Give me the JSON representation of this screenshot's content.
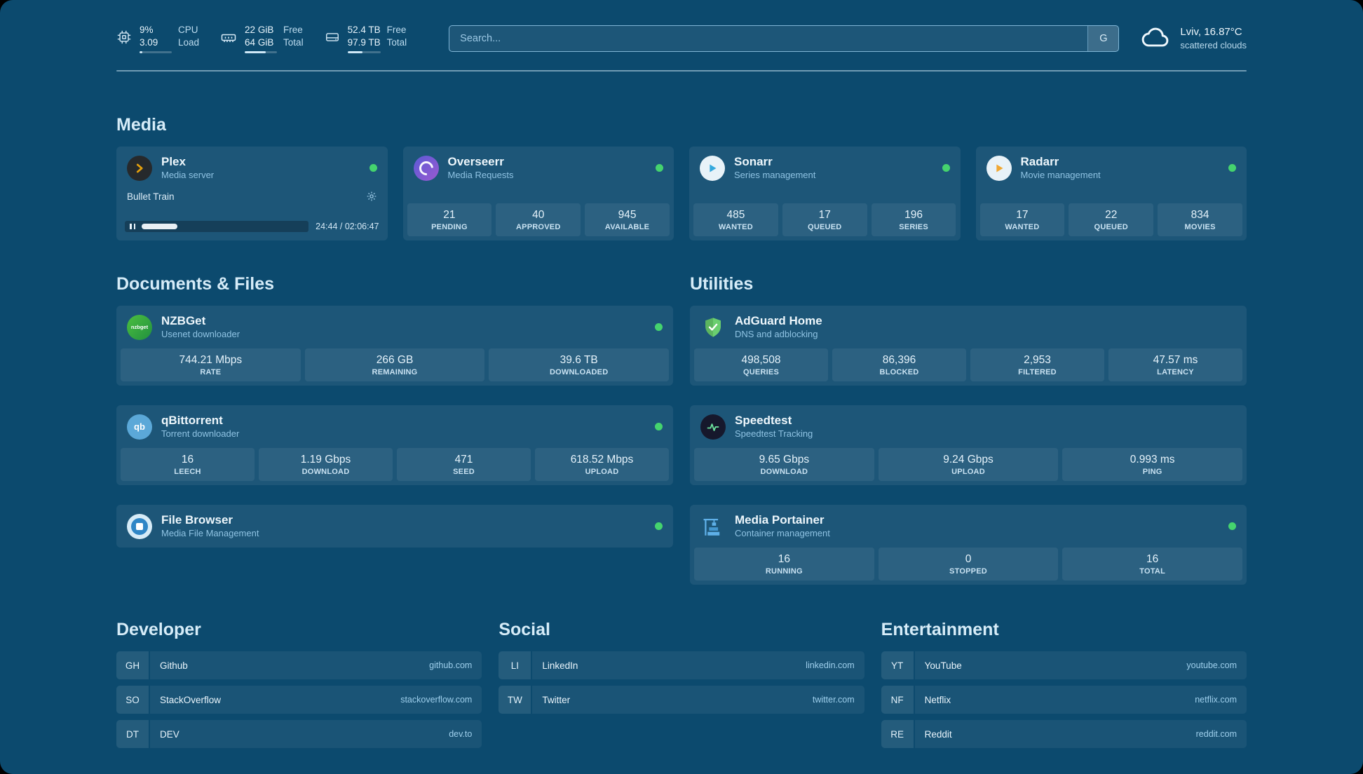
{
  "topbar": {
    "cpu": {
      "value_top": "9%",
      "value_bottom": "3.09",
      "label_top": "CPU",
      "label_bottom": "Load",
      "usage_pct": 9
    },
    "memory": {
      "value_top": "22 GiB",
      "value_bottom": "64 GiB",
      "label_top": "Free",
      "label_bottom": "Total",
      "usage_pct": 66
    },
    "disk": {
      "value_top": "52.4 TB",
      "value_bottom": "97.9 TB",
      "label_top": "Free",
      "label_bottom": "Total",
      "usage_pct": 46
    },
    "search": {
      "placeholder": "Search...",
      "provider_label": "G"
    },
    "weather": {
      "location": "Lviv, 16.87°C",
      "condition": "scattered clouds"
    }
  },
  "sections": {
    "media": "Media",
    "documents": "Documents & Files",
    "utilities": "Utilities",
    "developer": "Developer",
    "social": "Social",
    "entertainment": "Entertainment"
  },
  "services": {
    "plex": {
      "name": "Plex",
      "subtitle": "Media server",
      "now_playing": {
        "title": "Bullet Train",
        "progress_pct": 19.5,
        "time": "24:44 / 02:06:47"
      }
    },
    "overseerr": {
      "name": "Overseerr",
      "subtitle": "Media Requests",
      "stats": [
        {
          "value": "21",
          "label": "PENDING"
        },
        {
          "value": "40",
          "label": "APPROVED"
        },
        {
          "value": "945",
          "label": "AVAILABLE"
        }
      ]
    },
    "sonarr": {
      "name": "Sonarr",
      "subtitle": "Series management",
      "stats": [
        {
          "value": "485",
          "label": "WANTED"
        },
        {
          "value": "17",
          "label": "QUEUED"
        },
        {
          "value": "196",
          "label": "SERIES"
        }
      ]
    },
    "radarr": {
      "name": "Radarr",
      "subtitle": "Movie management",
      "stats": [
        {
          "value": "17",
          "label": "WANTED"
        },
        {
          "value": "22",
          "label": "QUEUED"
        },
        {
          "value": "834",
          "label": "MOVIES"
        }
      ]
    },
    "nzbget": {
      "name": "NZBGet",
      "subtitle": "Usenet downloader",
      "icon_text": "nzbget",
      "stats": [
        {
          "value": "744.21 Mbps",
          "label": "RATE"
        },
        {
          "value": "266 GB",
          "label": "REMAINING"
        },
        {
          "value": "39.6 TB",
          "label": "DOWNLOADED"
        }
      ]
    },
    "adguard": {
      "name": "AdGuard Home",
      "subtitle": "DNS and adblocking",
      "stats": [
        {
          "value": "498,508",
          "label": "QUERIES"
        },
        {
          "value": "86,396",
          "label": "BLOCKED"
        },
        {
          "value": "2,953",
          "label": "FILTERED"
        },
        {
          "value": "47.57 ms",
          "label": "LATENCY"
        }
      ]
    },
    "qbittorrent": {
      "name": "qBittorrent",
      "subtitle": "Torrent downloader",
      "icon_text": "qb",
      "stats": [
        {
          "value": "16",
          "label": "LEECH"
        },
        {
          "value": "1.19 Gbps",
          "label": "DOWNLOAD"
        },
        {
          "value": "471",
          "label": "SEED"
        },
        {
          "value": "618.52 Mbps",
          "label": "UPLOAD"
        }
      ]
    },
    "speedtest": {
      "name": "Speedtest",
      "subtitle": "Speedtest Tracking",
      "stats": [
        {
          "value": "9.65 Gbps",
          "label": "DOWNLOAD"
        },
        {
          "value": "9.24 Gbps",
          "label": "UPLOAD"
        },
        {
          "value": "0.993 ms",
          "label": "PING"
        }
      ]
    },
    "filebrowser": {
      "name": "File Browser",
      "subtitle": "Media File Management"
    },
    "portainer": {
      "name": "Media Portainer",
      "subtitle": "Container management",
      "stats": [
        {
          "value": "16",
          "label": "RUNNING"
        },
        {
          "value": "0",
          "label": "STOPPED"
        },
        {
          "value": "16",
          "label": "TOTAL"
        }
      ]
    }
  },
  "bookmarks": {
    "developer": [
      {
        "abbr": "GH",
        "name": "Github",
        "url": "github.com"
      },
      {
        "abbr": "SO",
        "name": "StackOverflow",
        "url": "stackoverflow.com"
      },
      {
        "abbr": "DT",
        "name": "DEV",
        "url": "dev.to"
      }
    ],
    "social": [
      {
        "abbr": "LI",
        "name": "LinkedIn",
        "url": "linkedin.com"
      },
      {
        "abbr": "TW",
        "name": "Twitter",
        "url": "twitter.com"
      }
    ],
    "entertainment": [
      {
        "abbr": "YT",
        "name": "YouTube",
        "url": "youtube.com"
      },
      {
        "abbr": "NF",
        "name": "Netflix",
        "url": "netflix.com"
      },
      {
        "abbr": "RE",
        "name": "Reddit",
        "url": "reddit.com"
      }
    ]
  },
  "colors": {
    "status_ok": "#45d36e",
    "page_bg": "#0c4a6e"
  }
}
